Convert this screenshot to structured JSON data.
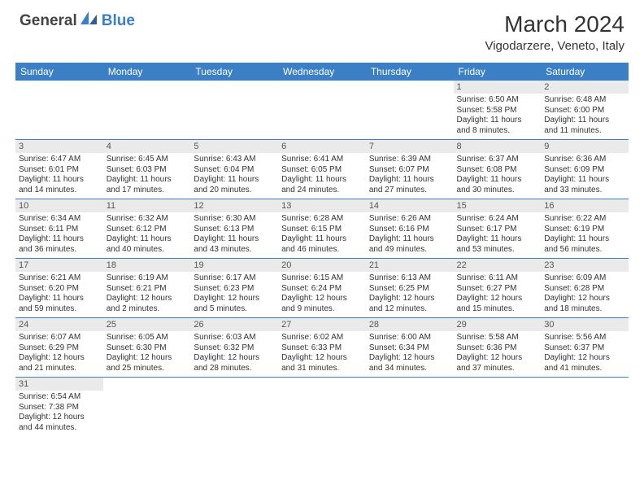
{
  "logo": {
    "text1": "General",
    "text2": "Blue"
  },
  "title": "March 2024",
  "location": "Vigodarzere, Veneto, Italy",
  "colors": {
    "header_bg": "#3b7fc4",
    "header_text": "#ffffff",
    "daynum_bg": "#eaeaea",
    "row_border": "#3b7fc4",
    "body_text": "#333333"
  },
  "weekdays": [
    "Sunday",
    "Monday",
    "Tuesday",
    "Wednesday",
    "Thursday",
    "Friday",
    "Saturday"
  ],
  "weeks": [
    [
      null,
      null,
      null,
      null,
      null,
      {
        "n": "1",
        "sr": "Sunrise: 6:50 AM",
        "ss": "Sunset: 5:58 PM",
        "d1": "Daylight: 11 hours",
        "d2": "and 8 minutes."
      },
      {
        "n": "2",
        "sr": "Sunrise: 6:48 AM",
        "ss": "Sunset: 6:00 PM",
        "d1": "Daylight: 11 hours",
        "d2": "and 11 minutes."
      }
    ],
    [
      {
        "n": "3",
        "sr": "Sunrise: 6:47 AM",
        "ss": "Sunset: 6:01 PM",
        "d1": "Daylight: 11 hours",
        "d2": "and 14 minutes."
      },
      {
        "n": "4",
        "sr": "Sunrise: 6:45 AM",
        "ss": "Sunset: 6:03 PM",
        "d1": "Daylight: 11 hours",
        "d2": "and 17 minutes."
      },
      {
        "n": "5",
        "sr": "Sunrise: 6:43 AM",
        "ss": "Sunset: 6:04 PM",
        "d1": "Daylight: 11 hours",
        "d2": "and 20 minutes."
      },
      {
        "n": "6",
        "sr": "Sunrise: 6:41 AM",
        "ss": "Sunset: 6:05 PM",
        "d1": "Daylight: 11 hours",
        "d2": "and 24 minutes."
      },
      {
        "n": "7",
        "sr": "Sunrise: 6:39 AM",
        "ss": "Sunset: 6:07 PM",
        "d1": "Daylight: 11 hours",
        "d2": "and 27 minutes."
      },
      {
        "n": "8",
        "sr": "Sunrise: 6:37 AM",
        "ss": "Sunset: 6:08 PM",
        "d1": "Daylight: 11 hours",
        "d2": "and 30 minutes."
      },
      {
        "n": "9",
        "sr": "Sunrise: 6:36 AM",
        "ss": "Sunset: 6:09 PM",
        "d1": "Daylight: 11 hours",
        "d2": "and 33 minutes."
      }
    ],
    [
      {
        "n": "10",
        "sr": "Sunrise: 6:34 AM",
        "ss": "Sunset: 6:11 PM",
        "d1": "Daylight: 11 hours",
        "d2": "and 36 minutes."
      },
      {
        "n": "11",
        "sr": "Sunrise: 6:32 AM",
        "ss": "Sunset: 6:12 PM",
        "d1": "Daylight: 11 hours",
        "d2": "and 40 minutes."
      },
      {
        "n": "12",
        "sr": "Sunrise: 6:30 AM",
        "ss": "Sunset: 6:13 PM",
        "d1": "Daylight: 11 hours",
        "d2": "and 43 minutes."
      },
      {
        "n": "13",
        "sr": "Sunrise: 6:28 AM",
        "ss": "Sunset: 6:15 PM",
        "d1": "Daylight: 11 hours",
        "d2": "and 46 minutes."
      },
      {
        "n": "14",
        "sr": "Sunrise: 6:26 AM",
        "ss": "Sunset: 6:16 PM",
        "d1": "Daylight: 11 hours",
        "d2": "and 49 minutes."
      },
      {
        "n": "15",
        "sr": "Sunrise: 6:24 AM",
        "ss": "Sunset: 6:17 PM",
        "d1": "Daylight: 11 hours",
        "d2": "and 53 minutes."
      },
      {
        "n": "16",
        "sr": "Sunrise: 6:22 AM",
        "ss": "Sunset: 6:19 PM",
        "d1": "Daylight: 11 hours",
        "d2": "and 56 minutes."
      }
    ],
    [
      {
        "n": "17",
        "sr": "Sunrise: 6:21 AM",
        "ss": "Sunset: 6:20 PM",
        "d1": "Daylight: 11 hours",
        "d2": "and 59 minutes."
      },
      {
        "n": "18",
        "sr": "Sunrise: 6:19 AM",
        "ss": "Sunset: 6:21 PM",
        "d1": "Daylight: 12 hours",
        "d2": "and 2 minutes."
      },
      {
        "n": "19",
        "sr": "Sunrise: 6:17 AM",
        "ss": "Sunset: 6:23 PM",
        "d1": "Daylight: 12 hours",
        "d2": "and 5 minutes."
      },
      {
        "n": "20",
        "sr": "Sunrise: 6:15 AM",
        "ss": "Sunset: 6:24 PM",
        "d1": "Daylight: 12 hours",
        "d2": "and 9 minutes."
      },
      {
        "n": "21",
        "sr": "Sunrise: 6:13 AM",
        "ss": "Sunset: 6:25 PM",
        "d1": "Daylight: 12 hours",
        "d2": "and 12 minutes."
      },
      {
        "n": "22",
        "sr": "Sunrise: 6:11 AM",
        "ss": "Sunset: 6:27 PM",
        "d1": "Daylight: 12 hours",
        "d2": "and 15 minutes."
      },
      {
        "n": "23",
        "sr": "Sunrise: 6:09 AM",
        "ss": "Sunset: 6:28 PM",
        "d1": "Daylight: 12 hours",
        "d2": "and 18 minutes."
      }
    ],
    [
      {
        "n": "24",
        "sr": "Sunrise: 6:07 AM",
        "ss": "Sunset: 6:29 PM",
        "d1": "Daylight: 12 hours",
        "d2": "and 21 minutes."
      },
      {
        "n": "25",
        "sr": "Sunrise: 6:05 AM",
        "ss": "Sunset: 6:30 PM",
        "d1": "Daylight: 12 hours",
        "d2": "and 25 minutes."
      },
      {
        "n": "26",
        "sr": "Sunrise: 6:03 AM",
        "ss": "Sunset: 6:32 PM",
        "d1": "Daylight: 12 hours",
        "d2": "and 28 minutes."
      },
      {
        "n": "27",
        "sr": "Sunrise: 6:02 AM",
        "ss": "Sunset: 6:33 PM",
        "d1": "Daylight: 12 hours",
        "d2": "and 31 minutes."
      },
      {
        "n": "28",
        "sr": "Sunrise: 6:00 AM",
        "ss": "Sunset: 6:34 PM",
        "d1": "Daylight: 12 hours",
        "d2": "and 34 minutes."
      },
      {
        "n": "29",
        "sr": "Sunrise: 5:58 AM",
        "ss": "Sunset: 6:36 PM",
        "d1": "Daylight: 12 hours",
        "d2": "and 37 minutes."
      },
      {
        "n": "30",
        "sr": "Sunrise: 5:56 AM",
        "ss": "Sunset: 6:37 PM",
        "d1": "Daylight: 12 hours",
        "d2": "and 41 minutes."
      }
    ],
    [
      {
        "n": "31",
        "sr": "Sunrise: 6:54 AM",
        "ss": "Sunset: 7:38 PM",
        "d1": "Daylight: 12 hours",
        "d2": "and 44 minutes."
      },
      null,
      null,
      null,
      null,
      null,
      null
    ]
  ]
}
